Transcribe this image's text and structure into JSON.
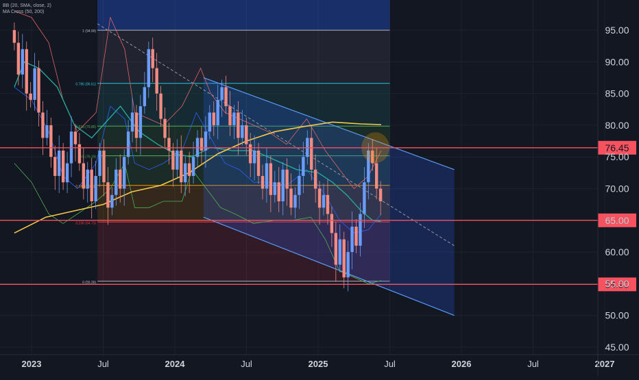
{
  "indicators": {
    "bb": "BB (20, SMA, close, 2)",
    "ma": "MA Cross (50, 200)"
  },
  "price_labels": [
    {
      "label": "76.45",
      "value": 76.45,
      "color": "#f7525f"
    },
    {
      "label": "65.00",
      "value": 65.0,
      "color": "#f7525f"
    },
    {
      "label": "54.90",
      "value": 54.9,
      "color": "#f7525f"
    }
  ],
  "chart_data": {
    "type": "candlestick",
    "y_axis": {
      "range": [
        44.5,
        98.5
      ],
      "ticks": [
        "95.00",
        "90.00",
        "85.00",
        "80.00",
        "75.00",
        "70.00",
        "65.00",
        "60.00",
        "55.00",
        "50.00",
        "45.00"
      ],
      "tick_values": [
        95,
        90,
        85,
        80,
        75,
        70,
        65,
        60,
        55,
        50,
        45
      ]
    },
    "x_axis": {
      "ticks": [
        {
          "label": "2023",
          "t": 0.0
        },
        {
          "label": "Jul",
          "t": 0.5
        },
        {
          "label": "2024",
          "t": 1.0
        },
        {
          "label": "Jul",
          "t": 1.5
        },
        {
          "label": "2025",
          "t": 2.0
        },
        {
          "label": "Jul",
          "t": 2.5
        },
        {
          "label": "2026",
          "t": 3.0
        },
        {
          "label": "Jul",
          "t": 3.5
        },
        {
          "label": "2027",
          "t": 4.0
        }
      ]
    },
    "horizontal_lines": [
      76.45,
      65.0,
      54.9
    ],
    "fibonacci": {
      "levels": [
        {
          "ratio": "1",
          "label": "1 (94.99)",
          "value": 94.99,
          "color": "#b2b5be"
        },
        {
          "ratio": "0.786",
          "label": "0.786 (86.61)",
          "value": 86.61,
          "color": "#26c6da"
        },
        {
          "ratio": "0.618",
          "label": "0.618 (79.86)",
          "value": 79.86,
          "color": "#4caf50"
        },
        {
          "ratio": "0.5",
          "label": "0.5 (75.19)",
          "value": 75.19,
          "color": "#4caf50"
        },
        {
          "ratio": "0.382",
          "label": "0.382 (70.51)",
          "value": 70.51,
          "color": "#ff9800"
        },
        {
          "ratio": "0.236",
          "label": "0.236 (64.73)",
          "value": 64.73,
          "color": "#f23645"
        },
        {
          "ratio": "0",
          "label": "0 (55.39)",
          "value": 55.39,
          "color": "#b2b5be"
        }
      ],
      "t_start": 0.46,
      "t_end": 2.5
    },
    "channel": {
      "upper": [
        {
          "t": 1.2,
          "v": 87.5
        },
        {
          "t": 2.95,
          "v": 73
        }
      ],
      "lower": [
        {
          "t": 1.2,
          "v": 65.5
        },
        {
          "t": 2.95,
          "v": 50
        }
      ],
      "mid_dashed": [
        {
          "t": 0.46,
          "v": 96
        },
        {
          "t": 2.95,
          "v": 61
        }
      ]
    },
    "ma_slow": [
      [
        -0.12,
        63
      ],
      [
        0.1,
        65.5
      ],
      [
        0.3,
        66.5
      ],
      [
        0.5,
        67.5
      ],
      [
        0.7,
        69.5
      ],
      [
        0.9,
        70.5
      ],
      [
        1.1,
        72.5
      ],
      [
        1.3,
        75.5
      ],
      [
        1.5,
        77.5
      ],
      [
        1.7,
        79
      ],
      [
        1.9,
        79.8
      ],
      [
        2.1,
        80.5
      ],
      [
        2.3,
        80.2
      ],
      [
        2.44,
        80.1
      ]
    ],
    "ma_fast": [
      [
        -0.12,
        86
      ],
      [
        -0.05,
        90
      ],
      [
        0.05,
        89
      ],
      [
        0.18,
        86
      ],
      [
        0.3,
        80
      ],
      [
        0.42,
        78
      ],
      [
        0.5,
        80
      ],
      [
        0.62,
        83
      ],
      [
        0.75,
        79
      ],
      [
        0.88,
        77
      ],
      [
        1.0,
        75.5
      ],
      [
        1.12,
        75
      ],
      [
        1.25,
        76.5
      ],
      [
        1.4,
        76
      ],
      [
        1.55,
        76
      ],
      [
        1.7,
        74.5
      ],
      [
        1.85,
        73
      ],
      [
        2.0,
        72.5
      ],
      [
        2.1,
        71
      ],
      [
        2.2,
        69
      ],
      [
        2.3,
        66.5
      ],
      [
        2.38,
        65
      ],
      [
        2.44,
        64.8
      ]
    ],
    "bb_upper": [
      [
        -0.12,
        98
      ],
      [
        0.0,
        97
      ],
      [
        0.12,
        93
      ],
      [
        0.22,
        84
      ],
      [
        0.32,
        79
      ],
      [
        0.45,
        82
      ],
      [
        0.55,
        97
      ],
      [
        0.65,
        92
      ],
      [
        0.72,
        82
      ],
      [
        0.82,
        81
      ],
      [
        0.92,
        80
      ],
      [
        1.05,
        83
      ],
      [
        1.18,
        89
      ],
      [
        1.25,
        85
      ],
      [
        1.35,
        82
      ],
      [
        1.45,
        81
      ],
      [
        1.55,
        80
      ],
      [
        1.65,
        79
      ],
      [
        1.78,
        77
      ],
      [
        1.92,
        81
      ],
      [
        2.05,
        76
      ],
      [
        2.15,
        73
      ],
      [
        2.25,
        70
      ],
      [
        2.35,
        72
      ],
      [
        2.44,
        76
      ]
    ],
    "bb_lower": [
      [
        -0.12,
        74
      ],
      [
        0.0,
        71
      ],
      [
        0.12,
        66
      ],
      [
        0.22,
        64.5
      ],
      [
        0.32,
        66
      ],
      [
        0.45,
        68
      ],
      [
        0.55,
        70
      ],
      [
        0.65,
        74
      ],
      [
        0.72,
        67
      ],
      [
        0.82,
        67
      ],
      [
        0.92,
        68
      ],
      [
        1.05,
        68
      ],
      [
        1.12,
        73
      ],
      [
        1.22,
        70
      ],
      [
        1.32,
        67
      ],
      [
        1.42,
        66
      ],
      [
        1.55,
        64.5
      ],
      [
        1.7,
        65
      ],
      [
        1.82,
        65
      ],
      [
        1.95,
        65.5
      ],
      [
        2.05,
        62
      ],
      [
        2.15,
        57
      ],
      [
        2.25,
        56
      ],
      [
        2.35,
        55
      ],
      [
        2.44,
        55.5
      ]
    ],
    "bb_basis": [
      [
        -0.12,
        86
      ],
      [
        0.0,
        84
      ],
      [
        0.12,
        79
      ],
      [
        0.22,
        72
      ],
      [
        0.32,
        70
      ],
      [
        0.45,
        74
      ],
      [
        0.55,
        83
      ],
      [
        0.65,
        81
      ],
      [
        0.72,
        74
      ],
      [
        0.82,
        73
      ],
      [
        0.92,
        74
      ],
      [
        1.05,
        76
      ],
      [
        1.15,
        82
      ],
      [
        1.25,
        78
      ],
      [
        1.35,
        74
      ],
      [
        1.45,
        73
      ],
      [
        1.55,
        71
      ],
      [
        1.65,
        71
      ],
      [
        1.78,
        70.5
      ],
      [
        1.92,
        73
      ],
      [
        2.05,
        69
      ],
      [
        2.15,
        65
      ],
      [
        2.25,
        63
      ],
      [
        2.35,
        63.5
      ],
      [
        2.44,
        66
      ]
    ],
    "candles_close": [
      93,
      88,
      92,
      85,
      84,
      89,
      82,
      78,
      80,
      75,
      72,
      76,
      71,
      74,
      79,
      77,
      74,
      70,
      73,
      68,
      72,
      76,
      71,
      67,
      69,
      73,
      70,
      75,
      79,
      82,
      78,
      83,
      86,
      92,
      89,
      85,
      81,
      78,
      76,
      73,
      76,
      71,
      74,
      72,
      75,
      78,
      76,
      79,
      82,
      80,
      84,
      86,
      83,
      80,
      82,
      78,
      80,
      77,
      74,
      76,
      72,
      70,
      74,
      69,
      71,
      68,
      73,
      70,
      67,
      69,
      72,
      75,
      78,
      73,
      70,
      67,
      69,
      66,
      63,
      58,
      62,
      56,
      60,
      64,
      61,
      66,
      71,
      76,
      74,
      70,
      68
    ],
    "candles_open_first": 95,
    "candle_t_start": -0.12,
    "candle_t_step": 0.0284
  }
}
